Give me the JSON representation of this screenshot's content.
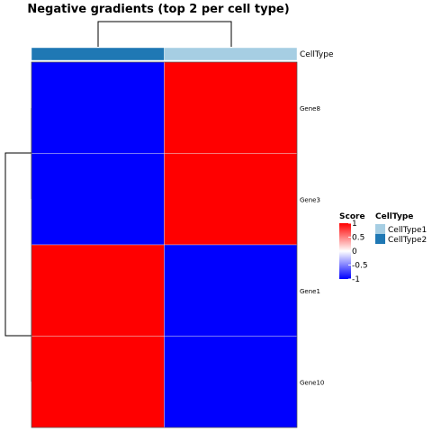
{
  "chart_data": {
    "type": "heatmap",
    "title": "Negative gradients (top 2 per cell type)",
    "columns": [
      {
        "label": "",
        "annotation": "CellType2"
      },
      {
        "label": "",
        "annotation": "CellType1"
      }
    ],
    "rows": [
      "Gene8",
      "Gene3",
      "Gene1",
      "Gene10"
    ],
    "values": [
      [
        -1,
        1
      ],
      [
        -1,
        1
      ],
      [
        1,
        -1
      ],
      [
        1,
        -1
      ]
    ],
    "annotation_track_label": "CellType",
    "color_scale": {
      "title": "Score",
      "min": -1,
      "max": 1,
      "low_color": "#0000ff",
      "mid_color": "#ffffff",
      "high_color": "#ff0000",
      "ticks": [
        "1",
        "0.5",
        "0",
        "-0.5",
        "-1"
      ]
    },
    "annotation_legend": {
      "title": "CellType",
      "entries": [
        {
          "label": "CellType1",
          "color": "#a6cee3"
        },
        {
          "label": "CellType2",
          "color": "#1f78b4"
        }
      ]
    },
    "row_dendrogram": true,
    "column_dendrogram": true,
    "grid": false,
    "legend_position": "right"
  }
}
